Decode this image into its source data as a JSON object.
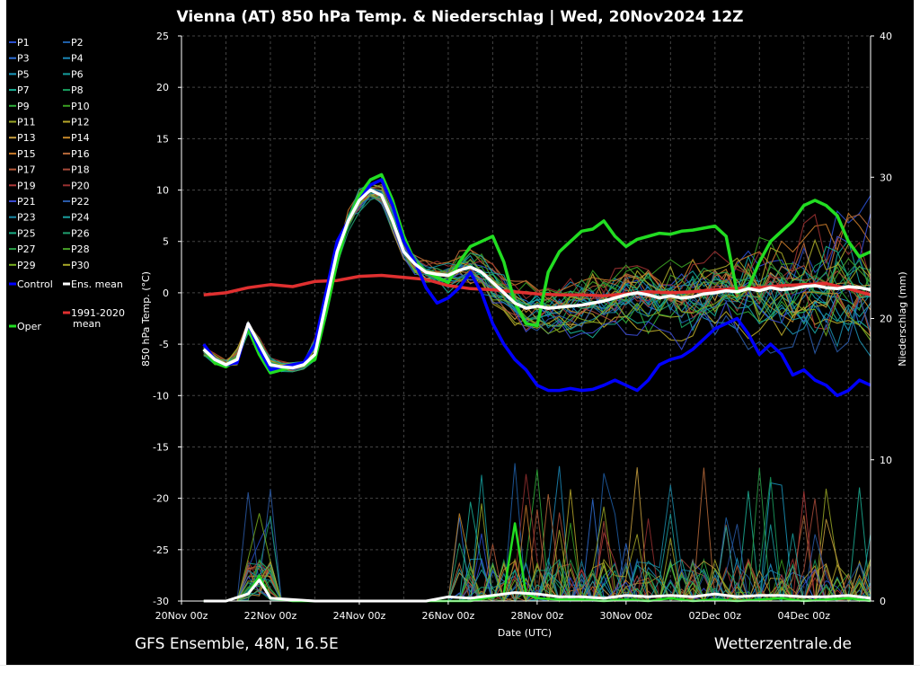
{
  "chart_data": {
    "type": "line",
    "title": "Vienna  (AT)  850 hPa Temp. & Niederschlag | Wed, 20Nov2024 12Z",
    "xlabel": "Date (UTC)",
    "ylabel": "850 hPa Temp. (°C)",
    "y2label": "Niederschlag (mm)",
    "ylim": [
      -30,
      25
    ],
    "y2lim": [
      0,
      40
    ],
    "xlim": [
      0,
      15.5
    ],
    "yticks": [
      "25",
      "20",
      "15",
      "10",
      "5",
      "0",
      "-5",
      "-10",
      "-15",
      "-20",
      "-25",
      "-30"
    ],
    "y2ticks": [
      "40",
      "30",
      "20",
      "10",
      "0"
    ],
    "xticks": [
      "20Nov 00z",
      "22Nov 00z",
      "24Nov 00z",
      "26Nov 00z",
      "28Nov 00z",
      "30Nov 00z",
      "02Dec 00z",
      "04Dec 00z"
    ],
    "x_unit": "days since 20Nov 00z",
    "grid": true,
    "legend_position": "left",
    "legend": [
      {
        "label": "P1",
        "color": "#2a4fcf"
      },
      {
        "label": "P2",
        "color": "#1f5fa8"
      },
      {
        "label": "P3",
        "color": "#2f6fd6"
      },
      {
        "label": "P4",
        "color": "#1b88b8"
      },
      {
        "label": "P5",
        "color": "#1a9ac0"
      },
      {
        "label": "P6",
        "color": "#159e9e"
      },
      {
        "label": "P7",
        "color": "#1bb096"
      },
      {
        "label": "P8",
        "color": "#19a060"
      },
      {
        "label": "P9",
        "color": "#2fae3a"
      },
      {
        "label": "P10",
        "color": "#3a9e22"
      },
      {
        "label": "P11",
        "color": "#9aa826"
      },
      {
        "label": "P12",
        "color": "#b8a82a"
      },
      {
        "label": "P13",
        "color": "#c8a040"
      },
      {
        "label": "P14",
        "color": "#c88a2a"
      },
      {
        "label": "P15",
        "color": "#c87a2a"
      },
      {
        "label": "P16",
        "color": "#b86a3a"
      },
      {
        "label": "P17",
        "color": "#b85a3a"
      },
      {
        "label": "P18",
        "color": "#a84a3a"
      },
      {
        "label": "P19",
        "color": "#b03a3a"
      },
      {
        "label": "P20",
        "color": "#983030"
      },
      {
        "label": "P21",
        "color": "#3a4ad0"
      },
      {
        "label": "P22",
        "color": "#2a5aa8"
      },
      {
        "label": "P23",
        "color": "#1a8aa8"
      },
      {
        "label": "P24",
        "color": "#1aa0a0"
      },
      {
        "label": "P25",
        "color": "#1ab088"
      },
      {
        "label": "P26",
        "color": "#20a070"
      },
      {
        "label": "P27",
        "color": "#2aa048"
      },
      {
        "label": "P28",
        "color": "#48a028"
      },
      {
        "label": "P29",
        "color": "#78b020"
      },
      {
        "label": "P30",
        "color": "#a8a828"
      },
      {
        "label": "Control",
        "color": "#0000ff"
      },
      {
        "label": "Ens. mean",
        "color": "#ffffff"
      },
      {
        "label": "1991-2020\nmean",
        "color": "#e03030"
      },
      {
        "label": "Oper",
        "color": "#22dd22"
      }
    ],
    "series": [
      {
        "name": "Control",
        "color": "#0000ff",
        "width": 3.5,
        "x": [
          0.5,
          0.75,
          1,
          1.25,
          1.5,
          1.75,
          2,
          2.25,
          2.5,
          2.75,
          3,
          3.25,
          3.5,
          3.75,
          4,
          4.25,
          4.5,
          4.75,
          5,
          5.25,
          5.5,
          5.75,
          6,
          6.25,
          6.5,
          6.75,
          7,
          7.25,
          7.5,
          7.75,
          8,
          8.25,
          8.5,
          8.75,
          9,
          9.25,
          9.5,
          9.75,
          10,
          10.25,
          10.5,
          10.75,
          11,
          11.25,
          11.5,
          11.75,
          12,
          12.25,
          12.5,
          12.75,
          13,
          13.25,
          13.5,
          13.75,
          14,
          14.25,
          14.5,
          14.75,
          15,
          15.25,
          15.5
        ],
        "y": [
          -5,
          -6.5,
          -7,
          -6.8,
          -3,
          -5.5,
          -7.5,
          -7.2,
          -7,
          -6.8,
          -5,
          0,
          5,
          7,
          9,
          10.5,
          11,
          8.5,
          5,
          3,
          0.5,
          -1,
          -0.5,
          0.5,
          2,
          0,
          -3,
          -5,
          -6.5,
          -7.5,
          -9,
          -9.5,
          -9.5,
          -9.3,
          -9.5,
          -9.4,
          -9,
          -8.5,
          -9,
          -9.5,
          -8.5,
          -7,
          -6.5,
          -6.2,
          -5.5,
          -4.5,
          -3.5,
          -3,
          -2.5,
          -4,
          -6,
          -5,
          -6,
          -8,
          -7.5,
          -8.5,
          -9,
          -10,
          -9.5,
          -8.5,
          -9
        ]
      },
      {
        "name": "Ens. mean",
        "color": "#ffffff",
        "width": 3.5,
        "x": [
          0.5,
          0.75,
          1,
          1.25,
          1.5,
          1.75,
          2,
          2.25,
          2.5,
          2.75,
          3,
          3.25,
          3.5,
          3.75,
          4,
          4.25,
          4.5,
          4.75,
          5,
          5.25,
          5.5,
          5.75,
          6,
          6.25,
          6.5,
          6.75,
          7,
          7.25,
          7.5,
          7.75,
          8,
          8.25,
          8.5,
          8.75,
          9,
          9.25,
          9.5,
          9.75,
          10,
          10.25,
          10.5,
          10.75,
          11,
          11.25,
          11.5,
          11.75,
          12,
          12.25,
          12.5,
          12.75,
          13,
          13.25,
          13.5,
          13.75,
          14,
          14.25,
          14.5,
          14.75,
          15,
          15.25,
          15.5
        ],
        "y": [
          -5.5,
          -6.5,
          -7,
          -6.5,
          -3,
          -5,
          -7,
          -7.2,
          -7.3,
          -7,
          -6,
          -1,
          4,
          7,
          9,
          10,
          9.5,
          7,
          4,
          2.8,
          2,
          1.8,
          1.7,
          2.2,
          2.5,
          2,
          1,
          0,
          -1,
          -1.5,
          -1.3,
          -1.5,
          -1.4,
          -1.3,
          -1.2,
          -1,
          -0.8,
          -0.5,
          -0.2,
          0,
          -0.2,
          -0.5,
          -0.3,
          -0.5,
          -0.4,
          -0.1,
          0,
          0.2,
          0.1,
          0.4,
          0.2,
          0.5,
          0.3,
          0.4,
          0.6,
          0.7,
          0.5,
          0.4,
          0.6,
          0.5,
          0.3
        ]
      },
      {
        "name": "1991-2020 mean",
        "color": "#e03030",
        "width": 3.5,
        "x": [
          0.5,
          1,
          1.5,
          2,
          2.5,
          3,
          3.5,
          4,
          4.5,
          5,
          5.5,
          6,
          6.5,
          7,
          7.5,
          8,
          8.5,
          9,
          9.5,
          10,
          10.5,
          11,
          11.5,
          12,
          12.5,
          13,
          13.5,
          14,
          14.5,
          15,
          15.5
        ],
        "y": [
          -0.2,
          0,
          0.5,
          0.8,
          0.6,
          1.1,
          1.2,
          1.6,
          1.7,
          1.5,
          1.3,
          0.7,
          0.4,
          0.3,
          0.1,
          -0.1,
          -0.2,
          -0.2,
          -0.3,
          -0.1,
          0.1,
          0,
          0.1,
          0.3,
          0.4,
          0.5,
          0.7,
          0.8,
          0.9,
          0.4,
          -0.2
        ]
      },
      {
        "name": "Oper",
        "color": "#22dd22",
        "width": 3.5,
        "x": [
          0.5,
          0.75,
          1,
          1.25,
          1.5,
          1.75,
          2,
          2.25,
          2.5,
          2.75,
          3,
          3.25,
          3.5,
          3.75,
          4,
          4.25,
          4.5,
          4.75,
          5,
          5.25,
          5.5,
          5.75,
          6,
          6.25,
          6.5,
          6.75,
          7,
          7.25,
          7.5,
          7.75,
          8,
          8.25,
          8.5,
          8.75,
          9,
          9.25,
          9.5,
          9.75,
          10,
          10.25,
          10.5,
          10.75,
          11,
          11.25,
          11.5,
          11.75,
          12,
          12.25,
          12.5,
          12.75,
          13,
          13.25,
          13.5,
          13.75,
          14,
          14.25,
          14.5,
          14.75,
          15,
          15.25,
          15.5
        ],
        "y": [
          -5.5,
          -6.8,
          -7.2,
          -6.5,
          -3.5,
          -6,
          -7.8,
          -7.5,
          -7.2,
          -7,
          -6.5,
          -2,
          3,
          7,
          9.5,
          11,
          11.5,
          9,
          5.5,
          3,
          2,
          1.5,
          1,
          3,
          4.5,
          5,
          5.5,
          3,
          -1,
          -3,
          -3.2,
          2,
          4,
          5,
          6,
          6.2,
          7,
          5.5,
          4.5,
          5.2,
          5.5,
          5.8,
          5.7,
          6,
          6.1,
          6.3,
          6.5,
          5.5,
          0,
          0.5,
          3,
          5,
          6,
          7,
          8.5,
          9,
          8.5,
          7.5,
          5,
          3.5,
          4
        ]
      },
      {
        "name": "Oper precip",
        "color": "#22dd22",
        "width": 2.5,
        "axis": "y2",
        "x": [
          0.5,
          1,
          1.5,
          1.75,
          2,
          2.5,
          3,
          3.5,
          4,
          4.5,
          5,
          5.5,
          6,
          6.5,
          7,
          7.25,
          7.5,
          7.75,
          8,
          8.5,
          9,
          9.5,
          10,
          10.5,
          11,
          11.5,
          12,
          12.5,
          13,
          13.5,
          14,
          14.5,
          15,
          15.5
        ],
        "y": [
          0,
          0,
          0.5,
          1.8,
          0.2,
          0,
          0,
          0,
          0,
          0,
          0,
          0,
          0,
          0,
          0.3,
          0.5,
          5.5,
          0.5,
          0.2,
          0.1,
          0.1,
          0,
          0.1,
          0,
          0.2,
          0,
          0.1,
          0,
          0.1,
          0.2,
          0,
          0.1,
          0.2,
          0
        ]
      },
      {
        "name": "Ens. mean precip",
        "color": "#ffffff",
        "width": 3,
        "axis": "y2",
        "x": [
          0.5,
          1,
          1.5,
          1.75,
          2,
          2.5,
          3,
          3.5,
          4,
          4.5,
          5,
          5.5,
          6,
          6.5,
          7,
          7.5,
          8,
          8.5,
          9,
          9.5,
          10,
          10.5,
          11,
          11.5,
          12,
          12.5,
          13,
          13.5,
          14,
          14.5,
          15,
          15.5
        ],
        "y": [
          0,
          0,
          0.5,
          1.5,
          0.2,
          0.1,
          0,
          0,
          0,
          0,
          0,
          0,
          0.3,
          0.2,
          0.4,
          0.6,
          0.5,
          0.3,
          0.3,
          0.2,
          0.4,
          0.3,
          0.4,
          0.3,
          0.5,
          0.3,
          0.4,
          0.4,
          0.3,
          0.3,
          0.4,
          0.2
        ]
      }
    ],
    "annotations": [
      "Oper"
    ],
    "footer_left": "GFS Ensemble, 48N, 16.5E",
    "footer_right": "Wetterzentrale.de"
  }
}
